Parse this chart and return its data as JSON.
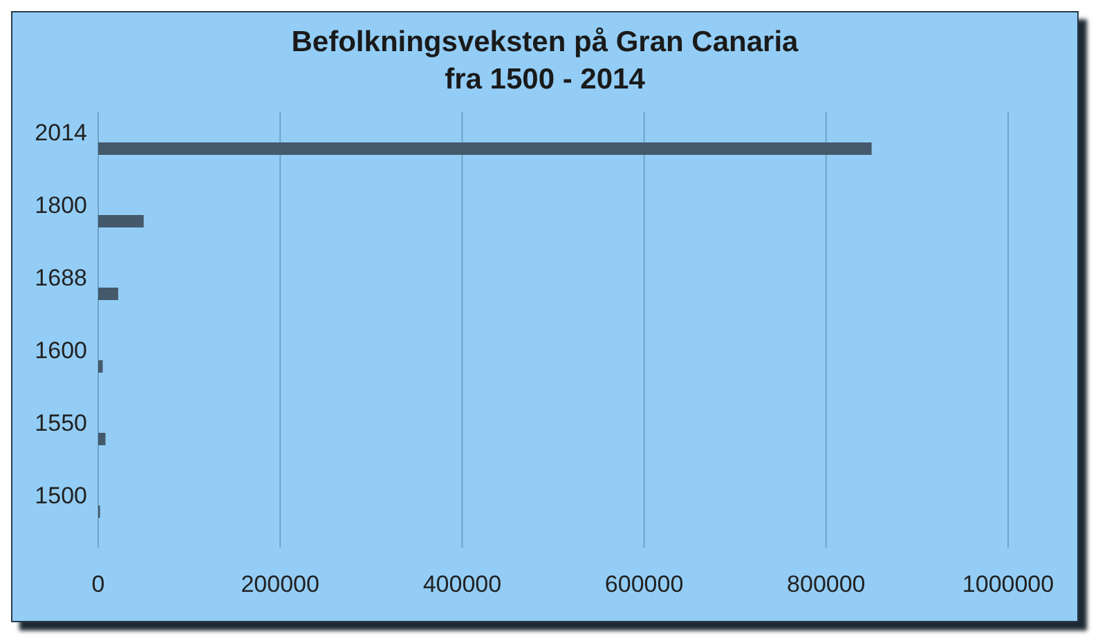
{
  "chart_data": {
    "type": "bar",
    "orientation": "horizontal",
    "title": "Befolkningsveksten på Gran Canaria",
    "subtitle": "fra 1500 - 2014",
    "categories": [
      "2014",
      "1800",
      "1688",
      "1600",
      "1550",
      "1500"
    ],
    "values": [
      850000,
      50000,
      22000,
      5000,
      8000,
      2000
    ],
    "color": "#44596b",
    "xlim": [
      0,
      1000000
    ],
    "xticks": [
      0,
      200000,
      400000,
      600000,
      800000,
      1000000
    ],
    "grid": "x"
  }
}
